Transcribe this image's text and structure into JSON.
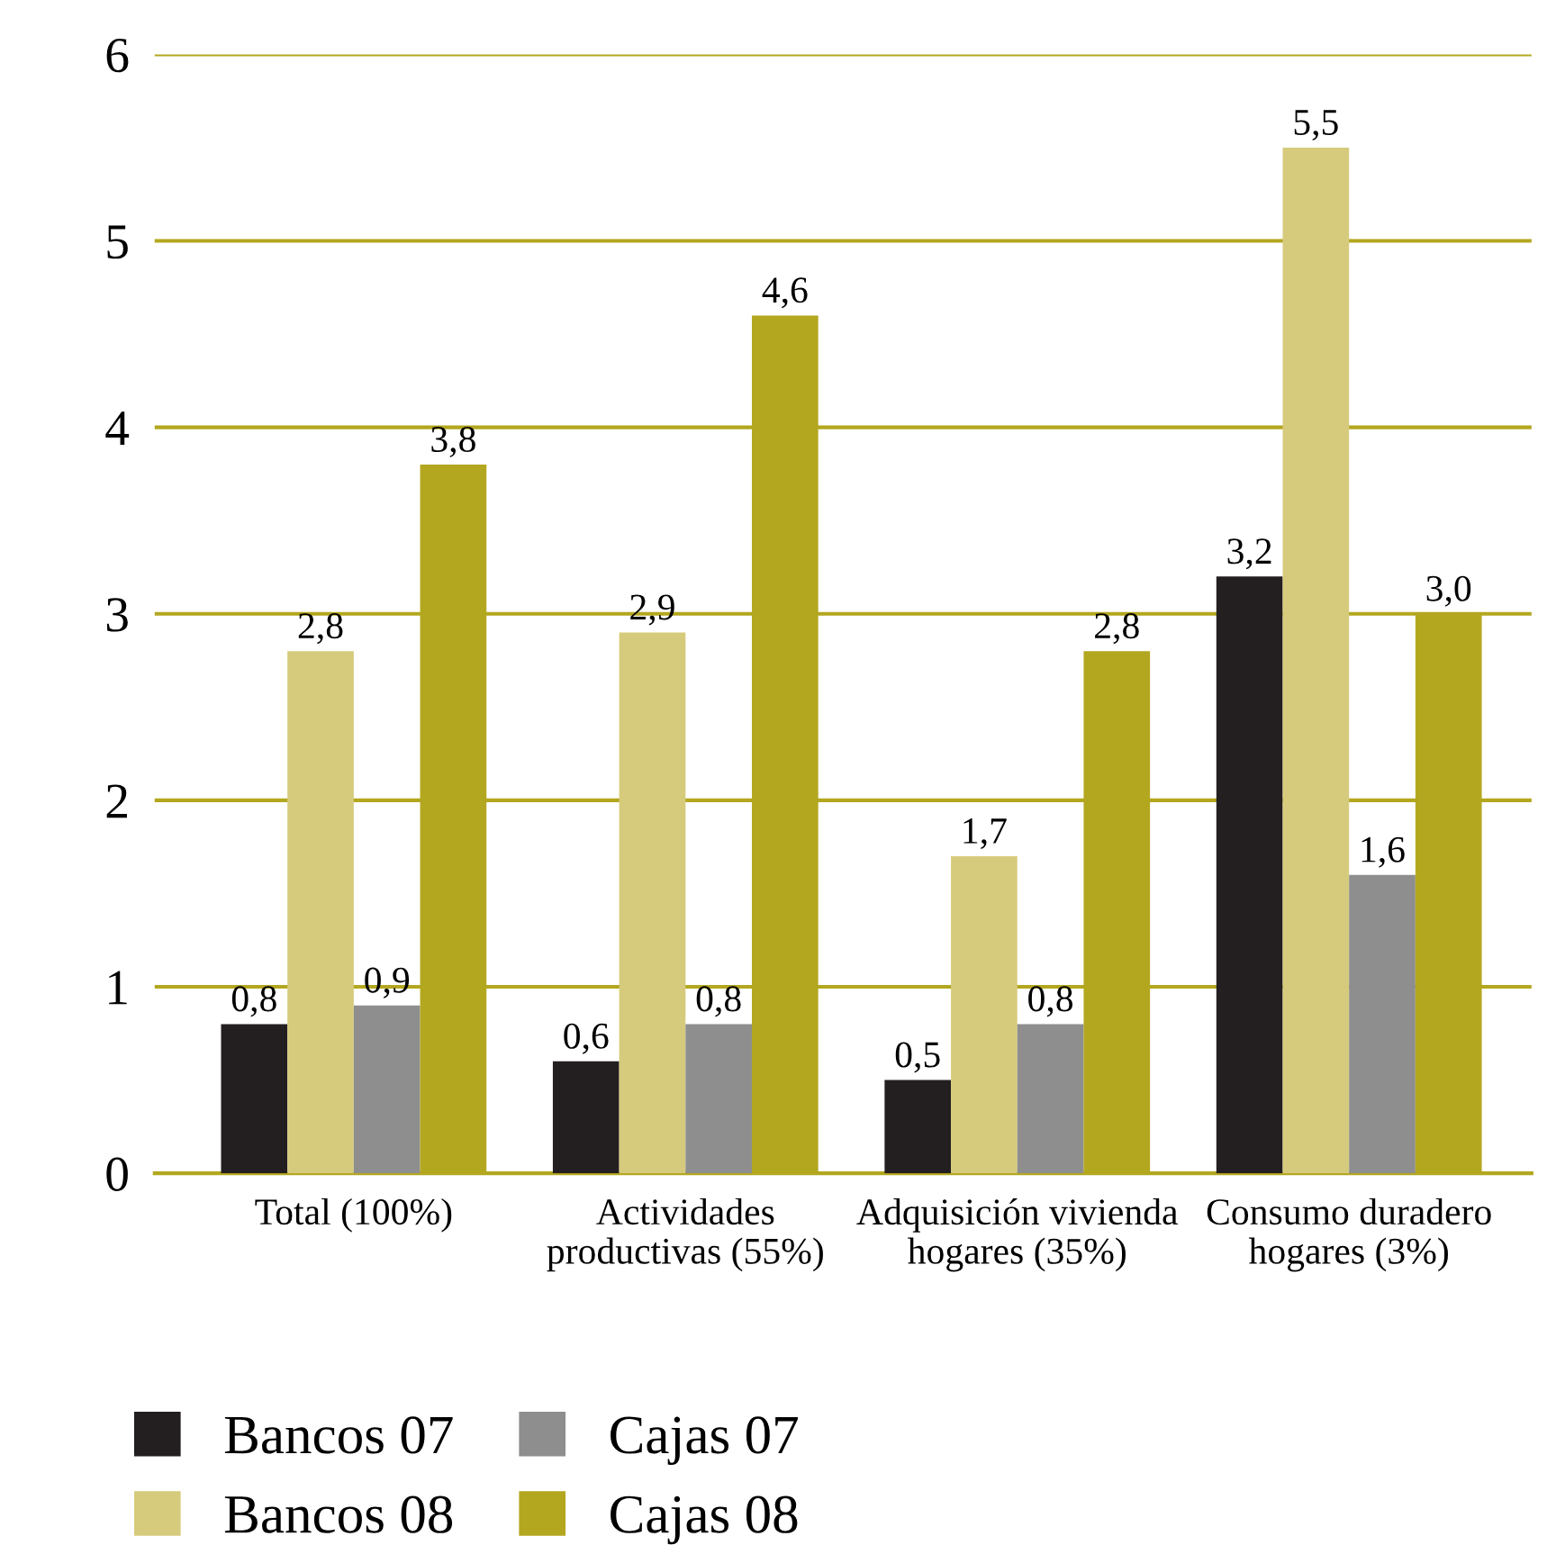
{
  "chart_data": {
    "type": "bar",
    "categories": [
      "Total (100%)",
      "Actividades\nproductivas (55%)",
      "Adquisición vivienda\nhogares (35%)",
      "Consumo duradero\nhogares (3%)"
    ],
    "series": [
      {
        "name": "Bancos 07",
        "color": "#231f20",
        "values": [
          0.8,
          0.6,
          0.5,
          3.2
        ],
        "value_labels": [
          "0,8",
          "0,6",
          "0,5",
          "3,2"
        ]
      },
      {
        "name": "Bancos 08",
        "color": "#d6cb7c",
        "values": [
          2.8,
          2.9,
          1.7,
          5.5
        ],
        "value_labels": [
          "2,8",
          "2,9",
          "1,7",
          "5,5"
        ]
      },
      {
        "name": "Cajas 07",
        "color": "#8e8e8e",
        "values": [
          0.9,
          0.8,
          0.8,
          1.6
        ],
        "value_labels": [
          "0,9",
          "0,8",
          "0,8",
          "1,6"
        ]
      },
      {
        "name": "Cajas 08",
        "color": "#b3a71f",
        "values": [
          3.8,
          4.6,
          2.8,
          3.0
        ],
        "value_labels": [
          "3,8",
          "4,6",
          "2,8",
          "3,0"
        ]
      }
    ],
    "ylim": [
      0,
      6
    ],
    "yticks": [
      0,
      1,
      2,
      3,
      4,
      5,
      6
    ],
    "grid": "y",
    "legend": "bottom"
  }
}
